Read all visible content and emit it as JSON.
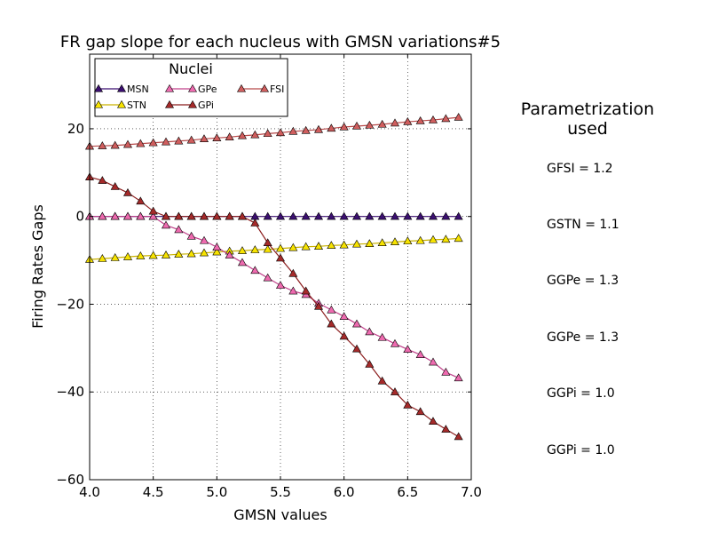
{
  "chart_data": {
    "type": "line",
    "title": "FR gap slope for each nucleus with GMSN variations#5",
    "xlabel": "GMSN values",
    "ylabel": "Firing Rates Gaps",
    "xlim": [
      4.0,
      7.0
    ],
    "ylim": [
      -60,
      37
    ],
    "xticks": [
      4.0,
      4.5,
      5.0,
      5.5,
      6.0,
      6.5,
      7.0
    ],
    "xtick_labels": [
      "4.0",
      "4.5",
      "5.0",
      "5.5",
      "6.0",
      "6.5",
      "7.0"
    ],
    "yticks": [
      -60,
      -40,
      -20,
      0,
      20
    ],
    "ytick_labels": [
      "−60",
      "−40",
      "−20",
      "0",
      "20"
    ],
    "grid": true,
    "legend_title": "Nuclei",
    "legend_position": "top-left",
    "x": [
      4.0,
      4.1,
      4.2,
      4.3,
      4.4,
      4.5,
      4.6,
      4.7,
      4.8,
      4.9,
      5.0,
      5.1,
      5.2,
      5.3,
      5.4,
      5.5,
      5.6,
      5.7,
      5.8,
      5.9,
      6.0,
      6.1,
      6.2,
      6.3,
      6.4,
      6.5,
      6.6,
      6.7,
      6.8,
      6.9
    ],
    "series": [
      {
        "name": "MSN",
        "color": "#3b0f70",
        "fill": "#3b0f70",
        "values": [
          0,
          0,
          0,
          0,
          0,
          0,
          0,
          0,
          0,
          0,
          0,
          0,
          0,
          0,
          0,
          0,
          0,
          0,
          0,
          0,
          0,
          0,
          0,
          0,
          0,
          0,
          0,
          0,
          0,
          0
        ]
      },
      {
        "name": "STN",
        "color": "#c9b200",
        "fill": "#f7e300",
        "values": [
          -9.8,
          -9.6,
          -9.4,
          -9.2,
          -9.0,
          -8.9,
          -8.8,
          -8.6,
          -8.5,
          -8.3,
          -8.1,
          -7.9,
          -7.8,
          -7.6,
          -7.5,
          -7.3,
          -7.1,
          -6.9,
          -6.8,
          -6.6,
          -6.5,
          -6.3,
          -6.2,
          -6.0,
          -5.8,
          -5.6,
          -5.5,
          -5.3,
          -5.2,
          -5.0
        ]
      },
      {
        "name": "GPe",
        "color": "#c0408a",
        "fill": "#ee6aaf",
        "values": [
          0,
          0,
          0,
          0,
          0,
          0,
          -2.0,
          -3.0,
          -4.5,
          -5.5,
          -7.0,
          -8.8,
          -10.5,
          -12.3,
          -14.0,
          -15.7,
          -17.0,
          -17.8,
          -19.8,
          -21.3,
          -22.8,
          -24.5,
          -26.3,
          -27.6,
          -29.0,
          -30.3,
          -31.5,
          -33.2,
          -35.5,
          -36.8
        ]
      },
      {
        "name": "GPi",
        "color": "#8b1c1c",
        "fill": "#a52a2a",
        "values": [
          9.0,
          8.2,
          6.8,
          5.4,
          3.5,
          1.2,
          0,
          0,
          0,
          0,
          0,
          0,
          0,
          -1.5,
          -6.0,
          -9.5,
          -13.0,
          -17.0,
          -20.5,
          -24.5,
          -27.3,
          -30.2,
          -33.7,
          -37.5,
          -40.0,
          -43.0,
          -44.5,
          -46.7,
          -48.5,
          -50.2
        ]
      },
      {
        "name": "FSI",
        "color": "#b84a4a",
        "fill": "#d05e5e",
        "values": [
          16.0,
          16.1,
          16.2,
          16.4,
          16.6,
          16.8,
          17.0,
          17.2,
          17.4,
          17.7,
          17.9,
          18.1,
          18.4,
          18.6,
          18.9,
          19.1,
          19.4,
          19.6,
          19.8,
          20.1,
          20.4,
          20.6,
          20.8,
          21.0,
          21.3,
          21.6,
          21.8,
          22.0,
          22.3,
          22.6
        ]
      }
    ],
    "legend_order": [
      0,
      1,
      2,
      3,
      4
    ]
  },
  "sidebar": {
    "title": "Parametrization used",
    "title_lines": [
      "Parametrization",
      "used"
    ],
    "items": [
      "GFSI = 1.2",
      "GSTN = 1.1",
      "GGPe = 1.3",
      "GGPe = 1.3",
      "GGPi = 1.0",
      "GGPi = 1.0"
    ]
  }
}
